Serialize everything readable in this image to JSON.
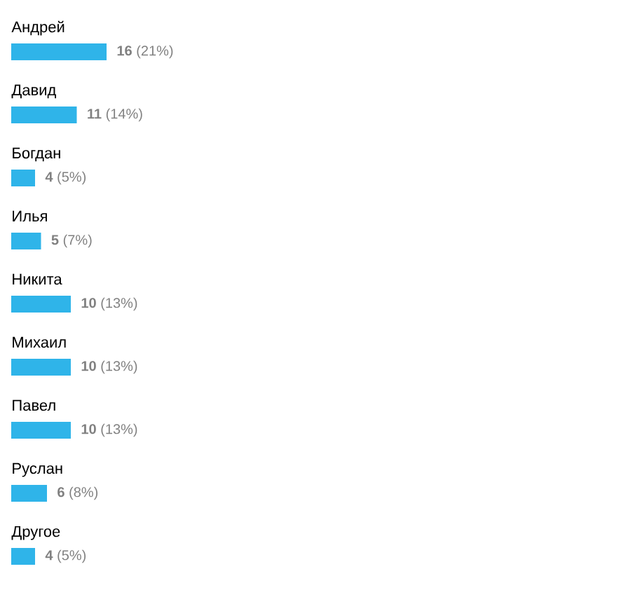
{
  "chart_data": {
    "type": "bar",
    "orientation": "horizontal",
    "color": "#2fb4e9",
    "categories": [
      "Андрей",
      "Давид",
      "Богдан",
      "Илья",
      "Никита",
      "Михаил",
      "Павел",
      "Руслан",
      "Другое"
    ],
    "values": [
      16,
      11,
      4,
      5,
      10,
      10,
      10,
      6,
      4
    ],
    "value_labels": [
      "**16** (21%)",
      "**11** (14%)",
      "**4** (5%)",
      "**5** (7%)",
      "**10** (13%)",
      "**10** (13%)",
      "**10** (13%)",
      "**6** (8%)",
      "**4** (5%)"
    ]
  }
}
